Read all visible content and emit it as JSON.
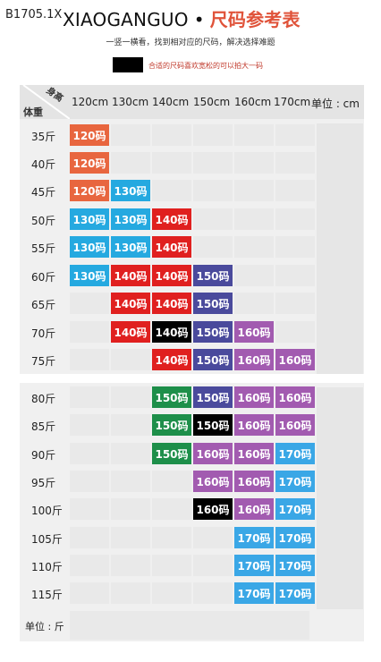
{
  "product_code": "B1705.1X",
  "brand": "XIAOGANGUO",
  "brand_separator": "•",
  "title": "尺码参考表",
  "subtitle": "一竖一横看，找到相对应的尺码，解决选择难题",
  "legend_text": "合适的尺码喜欢宽松的可以拍大一码",
  "corner_height": "身高",
  "corner_weight": "体重",
  "columns": [
    "120cm",
    "130cm",
    "140cm",
    "150cm",
    "160cm",
    "170cm",
    "单位 : cm"
  ],
  "unit_label": "单位 : 斤",
  "colors": {
    "120码": "#e8663f",
    "130码": "#25a9e0",
    "140码": "#e0201f",
    "150码": "#4a4a9c",
    "160码": "#a25bb0",
    "170码": "#3aa7e6",
    "150码g": "#1e8f4a",
    "black": "#000000"
  },
  "rows": [
    {
      "weight": "35斤",
      "cells": [
        "120码",
        "",
        "",
        "",
        "",
        ""
      ]
    },
    {
      "weight": "40斤",
      "cells": [
        "120码",
        "",
        "",
        "",
        "",
        ""
      ]
    },
    {
      "weight": "45斤",
      "cells": [
        "120码",
        "130码",
        "",
        "",
        "",
        ""
      ]
    },
    {
      "weight": "50斤",
      "cells": [
        "130码",
        "130码",
        "140码",
        "",
        "",
        ""
      ]
    },
    {
      "weight": "55斤",
      "cells": [
        "130码",
        "130码",
        "140码",
        "",
        "",
        ""
      ]
    },
    {
      "weight": "60斤",
      "cells": [
        "130码",
        "140码",
        "140码",
        "150码",
        "",
        ""
      ]
    },
    {
      "weight": "65斤",
      "cells": [
        "",
        "140码",
        "140码",
        "150码",
        "",
        ""
      ]
    },
    {
      "weight": "70斤",
      "cells": [
        "",
        "140码",
        "140码",
        "150码",
        "160码",
        ""
      ]
    },
    {
      "weight": "75斤",
      "cells": [
        "",
        "",
        "140码",
        "150码",
        "160码",
        "160码"
      ]
    },
    {
      "weight": "80斤",
      "cells": [
        "",
        "",
        "150码",
        "150码",
        "160码",
        "160码"
      ]
    },
    {
      "weight": "85斤",
      "cells": [
        "",
        "",
        "150码",
        "150码",
        "160码",
        "160码"
      ]
    },
    {
      "weight": "90斤",
      "cells": [
        "",
        "",
        "150码",
        "160码",
        "160码",
        "170码"
      ]
    },
    {
      "weight": "95斤",
      "cells": [
        "",
        "",
        "",
        "160码",
        "160码",
        "170码"
      ]
    },
    {
      "weight": "100斤",
      "cells": [
        "",
        "",
        "",
        "160码",
        "160码",
        "170码"
      ]
    },
    {
      "weight": "105斤",
      "cells": [
        "",
        "",
        "",
        "",
        "170码",
        "170码"
      ]
    },
    {
      "weight": "110斤",
      "cells": [
        "",
        "",
        "",
        "",
        "170码",
        "170码"
      ]
    },
    {
      "weight": "115斤",
      "cells": [
        "",
        "",
        "",
        "",
        "170码",
        "170码"
      ]
    }
  ]
}
